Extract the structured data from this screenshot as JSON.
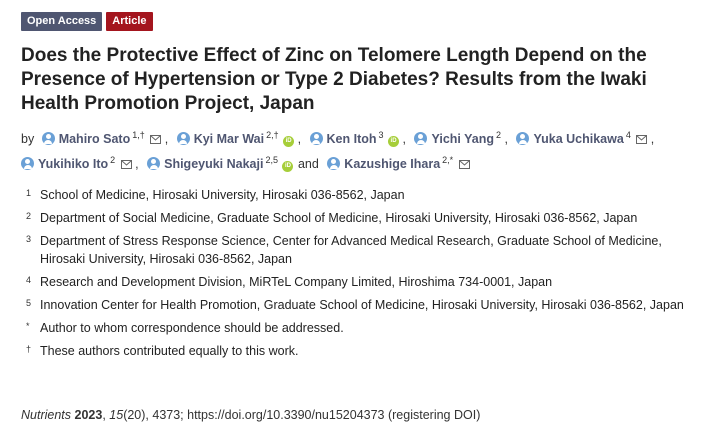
{
  "badges": {
    "open_access": "Open Access",
    "type": "Article"
  },
  "title": "Does the Protective Effect of Zinc on Telomere Length Depend on the Presence of Hypertension or Type 2 Diabetes? Results from the Iwaki Health Promotion Project, Japan",
  "authors_prefix": "by",
  "authors": [
    {
      "name": "Mahiro Sato",
      "sup": "1,†"
    },
    {
      "name": "Kyi Mar Wai",
      "sup": "2,†"
    },
    {
      "name": "Ken Itoh",
      "sup": "3"
    },
    {
      "name": "Yichi Yang",
      "sup": "2"
    },
    {
      "name": "Yuka Uchikawa",
      "sup": "4"
    },
    {
      "name": "Yukihiko Ito",
      "sup": "2"
    },
    {
      "name": "Shigeyuki Nakaji",
      "sup": "2,5"
    },
    {
      "name": "Kazushige Ihara",
      "sup": "2,*"
    }
  ],
  "authors_and": "and",
  "affiliations": [
    {
      "num": "1",
      "text": "School of Medicine, Hirosaki University, Hirosaki 036-8562, Japan"
    },
    {
      "num": "2",
      "text": "Department of Social Medicine, Graduate School of Medicine, Hirosaki University, Hirosaki 036-8562, Japan"
    },
    {
      "num": "3",
      "text": "Department of Stress Response Science, Center for Advanced Medical Research, Graduate School of Medicine, Hirosaki University, Hirosaki 036-8562, Japan"
    },
    {
      "num": "4",
      "text": "Research and Development Division, MiRTeL Company Limited, Hiroshima 734-0001, Japan"
    },
    {
      "num": "5",
      "text": "Innovation Center for Health Promotion, Graduate School of Medicine, Hirosaki University, Hirosaki 036-8562, Japan"
    },
    {
      "num": "*",
      "text": "Author to whom correspondence should be addressed."
    },
    {
      "num": "†",
      "text": "These authors contributed equally to this work."
    }
  ],
  "citation": {
    "journal": "Nutrients",
    "year": "2023",
    "volume": "15",
    "issue_pages": "(20), 4373; https://doi.org/10.3390/nu15204373 (registering DOI)"
  },
  "colors": {
    "open_access_badge": "#4f5671",
    "article_badge": "#a4151e",
    "author_link": "#4f5671",
    "orcid": "#a6ce39"
  }
}
